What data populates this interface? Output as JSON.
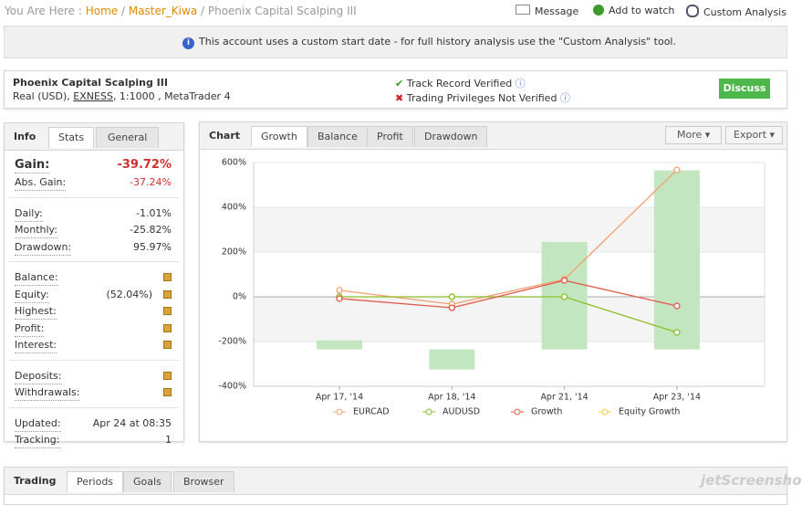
{
  "breadcrumb": {
    "prefix": "You Are Here :",
    "links": [
      "Home",
      "Master_Kiwa"
    ],
    "current": "Phoenix Capital Scalping III"
  },
  "actions": [
    "Message",
    "Add to watch",
    "Custom Analysis"
  ],
  "notice": "This account uses a custom start date - for full history analysis use the \"Custom Analysis\" tool.",
  "account": {
    "name": "Phoenix Capital Scalping III",
    "type": "Real (USD),",
    "broker": "EXNESS",
    "details": ", 1:1000 , MetaTrader 4",
    "verifications": [
      "Track Record Verified",
      "Trading Privileges Not Verified"
    ],
    "discuss": "Discuss"
  },
  "info": {
    "tabs": [
      "Info",
      "Stats",
      "General"
    ],
    "sections": [
      [
        {
          "label": "Gain:",
          "value": "-39.72%"
        },
        {
          "label": "Abs. Gain:",
          "value": "-37.24%"
        }
      ],
      [
        {
          "label": "Daily:",
          "value": "-1.01%"
        },
        {
          "label": "Monthly:",
          "value": "-25.82%"
        },
        {
          "label": "Drawdown:",
          "value": "95.97%"
        }
      ],
      [
        {
          "label": "Balance:",
          "locked": true
        },
        {
          "label": "Equity:",
          "note": "(52.04%)",
          "locked": true
        },
        {
          "label": "Highest:",
          "locked": true
        },
        {
          "label": "Profit:",
          "locked": true
        },
        {
          "label": "Interest:",
          "locked": true
        }
      ],
      [
        {
          "label": "Deposits:",
          "locked": true
        },
        {
          "label": "Withdrawals:",
          "locked": true
        }
      ],
      [
        {
          "label": "Updated:",
          "value": "Apr 24 at 08:35"
        },
        {
          "label": "Tracking:",
          "value": "1"
        }
      ]
    ]
  },
  "chart_panel": {
    "tabs": [
      "Chart",
      "Growth",
      "Balance",
      "Profit",
      "Drawdown"
    ],
    "buttons": [
      "More",
      "Export"
    ]
  },
  "chart_data": {
    "type": "line",
    "categories": [
      "Apr 17, '14",
      "Apr 18, '14",
      "Apr 21, '14",
      "Apr 23, '14"
    ],
    "bar_ranges": [
      [
        -235,
        -195
      ],
      [
        -235,
        -325
      ],
      [
        -235,
        245
      ],
      [
        -235,
        565
      ]
    ],
    "bar_color": "#c2e6c0",
    "series": [
      {
        "name": "EURCAD",
        "color": "#f2a070",
        "values": [
          29,
          -33,
          78,
          567
        ]
      },
      {
        "name": "AUDUSD",
        "color": "#8cbf26",
        "values": [
          0,
          0,
          0,
          -159
        ]
      },
      {
        "name": "Growth",
        "color": "#e05a4a",
        "values": [
          -8,
          -49,
          73,
          -41
        ]
      },
      {
        "name": "Equity Growth",
        "color": "#f0d040",
        "values": [
          null,
          null,
          null,
          null
        ]
      }
    ],
    "ylim": [
      -400,
      600
    ],
    "yticks": [
      {
        "value": 600,
        "label": "600%"
      },
      {
        "value": 400,
        "label": "400%"
      },
      {
        "value": 200,
        "label": "200%"
      },
      {
        "value": 0,
        "label": "0%"
      },
      {
        "value": -200,
        "label": "-200%"
      },
      {
        "value": -400,
        "label": "-400%"
      }
    ],
    "alternate_bands": true
  },
  "bottom_tabs": [
    "Trading",
    "Periods",
    "Goals",
    "Browser"
  ],
  "watermark": "jetScreenshot"
}
